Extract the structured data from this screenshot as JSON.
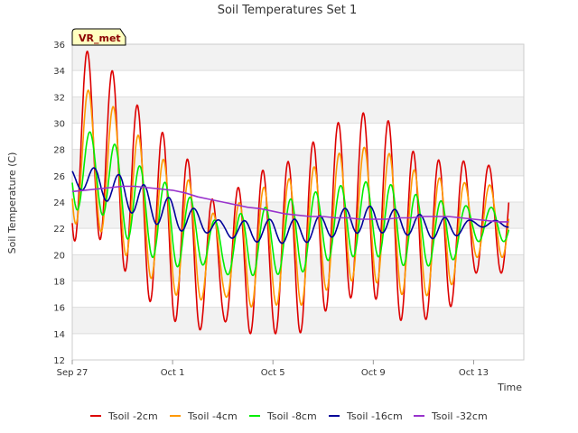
{
  "chart_data": {
    "type": "line",
    "title": "Soil Temperatures Set 1",
    "xlabel": "Time",
    "ylabel": "Soil Temperature (C)",
    "badge": "VR_met",
    "x_ticks": [
      "Sep 27",
      "Oct 1",
      "Oct 5",
      "Oct 9",
      "Oct 13"
    ],
    "y_ticks": [
      12,
      14,
      16,
      18,
      20,
      22,
      24,
      26,
      28,
      30,
      32,
      34,
      36
    ],
    "xlim": [
      "2023-09-27",
      "2023-10-15"
    ],
    "ylim": [
      12,
      36
    ],
    "grid": true,
    "legend_position": "bottom",
    "series": [
      {
        "name": "Tsoil -2cm",
        "color": "#dd0000",
        "phase": 0.6,
        "maxima": [
          35.7,
          35.3,
          33.1,
          30.2,
          28.7,
          26.3,
          22.8,
          26.6,
          26.3,
          27.6,
          29.2,
          30.6,
          30.9,
          29.7,
          26.6,
          27.6,
          26.8
        ],
        "minima": [
          21.0,
          21.4,
          19.0,
          16.6,
          15.0,
          14.2,
          15.0,
          14.0,
          14.0,
          13.9,
          15.6,
          16.7,
          16.8,
          15.0,
          15.0,
          15.8,
          18.6
        ]
      },
      {
        "name": "Tsoil -4cm",
        "color": "#ff9900",
        "phase": 0.64,
        "maxima": [
          32.7,
          32.4,
          30.6,
          28.2,
          26.7,
          25.1,
          22.0,
          25.0,
          25.2,
          26.1,
          27.0,
          28.1,
          28.2,
          27.4,
          25.9,
          25.8,
          25.3
        ],
        "minima": [
          22.4,
          22.0,
          20.2,
          18.4,
          17.0,
          16.5,
          16.9,
          16.0,
          16.2,
          16.0,
          17.2,
          18.0,
          18.0,
          17.0,
          16.8,
          17.4,
          19.8
        ]
      },
      {
        "name": "Tsoil -8cm",
        "color": "#00ee00",
        "phase": 0.7,
        "maxima": [
          29.4,
          29.3,
          28.0,
          26.2,
          25.2,
          24.0,
          22.0,
          23.6,
          23.6,
          24.5,
          24.9,
          25.4,
          25.6,
          25.2,
          24.3,
          24.0,
          23.6
        ],
        "minima": [
          23.4,
          23.4,
          21.5,
          20.0,
          19.0,
          19.4,
          18.5,
          18.4,
          18.5,
          18.5,
          19.5,
          19.8,
          20.0,
          19.2,
          19.1,
          19.3,
          21.0
        ]
      },
      {
        "name": "Tsoil -16cm",
        "color": "#000099",
        "phase": 0.86,
        "maxima": [
          26.6,
          26.6,
          26.0,
          25.2,
          24.2,
          23.4,
          22.5,
          22.6,
          22.7,
          22.7,
          23.0,
          23.6,
          23.7,
          23.4,
          23.0,
          22.8,
          22.6
        ],
        "minima": [
          25.2,
          24.4,
          23.5,
          22.6,
          21.8,
          21.8,
          21.4,
          21.0,
          20.9,
          20.8,
          21.2,
          21.6,
          21.7,
          21.6,
          21.3,
          21.1,
          22.1
        ]
      },
      {
        "name": "Tsoil -32cm",
        "color": "#9933cc",
        "x": [
          0.0,
          0.5,
          1.0,
          1.5,
          2.0,
          2.5,
          3.0,
          3.5,
          4.0,
          4.5,
          5.0,
          5.5,
          6.0,
          6.5,
          7.0,
          7.5,
          8.0,
          8.5,
          9.0,
          9.5,
          10.0,
          10.5,
          11.0,
          11.5,
          12.0,
          12.5,
          13.0,
          13.5,
          14.0,
          14.5,
          15.0,
          15.5,
          16.0,
          16.5,
          17.0,
          17.4
        ],
        "y": [
          24.8,
          24.9,
          25.0,
          25.1,
          25.2,
          25.2,
          25.1,
          25.0,
          24.9,
          24.7,
          24.4,
          24.2,
          24.0,
          23.8,
          23.6,
          23.5,
          23.3,
          23.1,
          23.0,
          22.9,
          22.9,
          22.8,
          22.8,
          22.7,
          22.7,
          22.7,
          22.8,
          22.8,
          22.9,
          22.9,
          22.9,
          22.8,
          22.7,
          22.6,
          22.5,
          22.5
        ]
      }
    ]
  }
}
